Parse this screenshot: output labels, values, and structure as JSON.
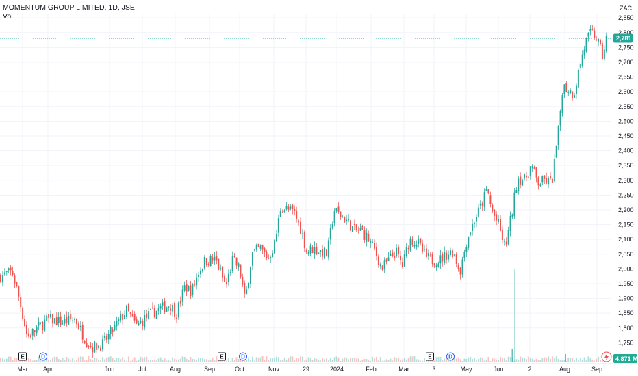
{
  "legend": {
    "title": "MOMENTUM GROUP LIMITED, 1D, JSE",
    "volume_label": "Vol"
  },
  "currency": "ZAC",
  "colors": {
    "up": "#26a69a",
    "down": "#ef5350",
    "grid": "#f0f3fa",
    "axis_text": "#131722",
    "price_line": "#26a69a",
    "volume_badge": "#22ab94"
  },
  "chart_data": {
    "type": "candlestick",
    "symbol": "MOMENTUM GROUP LIMITED",
    "interval": "1D",
    "exchange": "JSE",
    "ylim": [
      1705,
      2845
    ],
    "y_ticks": [
      "1,750",
      "1,800",
      "1,850",
      "1,900",
      "1,950",
      "2,000",
      "2,050",
      "2,100",
      "2,150",
      "2,200",
      "2,250",
      "2,300",
      "2,350",
      "2,400",
      "2,450",
      "2,500",
      "2,550",
      "2,600",
      "2,650",
      "2,700",
      "2,750",
      "2,800",
      "2,850"
    ],
    "x_labels": [
      "Mar",
      "Apr",
      "Jun",
      "Jul",
      "Aug",
      "Sep",
      "Oct",
      "Nov",
      "29",
      "2024",
      "Feb",
      "Mar",
      "3",
      "May",
      "Jun",
      "2",
      "Aug",
      "Sep"
    ],
    "grid": true,
    "last_price": "2,781",
    "last_volume": "4.871 M",
    "events": [
      {
        "label": "E",
        "kind": "earnings"
      },
      {
        "label": "D",
        "kind": "dividend"
      },
      {
        "label": "E",
        "kind": "earnings"
      },
      {
        "label": "D",
        "kind": "dividend"
      },
      {
        "label": "E",
        "kind": "earnings"
      },
      {
        "label": "D",
        "kind": "dividend"
      }
    ],
    "anchors": [
      [
        0,
        1975
      ],
      [
        18,
        1990
      ],
      [
        28,
        1900
      ],
      [
        40,
        1770
      ],
      [
        55,
        1800
      ],
      [
        70,
        1830
      ],
      [
        90,
        1820
      ],
      [
        110,
        1830
      ],
      [
        125,
        1760
      ],
      [
        135,
        1735
      ],
      [
        150,
        1745
      ],
      [
        170,
        1810
      ],
      [
        185,
        1860
      ],
      [
        200,
        1805
      ],
      [
        215,
        1840
      ],
      [
        230,
        1860
      ],
      [
        248,
        1880
      ],
      [
        258,
        1850
      ],
      [
        270,
        1940
      ],
      [
        280,
        1925
      ],
      [
        290,
        1990
      ],
      [
        300,
        2030
      ],
      [
        315,
        2030
      ],
      [
        322,
        1990
      ],
      [
        330,
        1940
      ],
      [
        340,
        2030
      ],
      [
        350,
        2000
      ],
      [
        358,
        1890
      ],
      [
        368,
        2050
      ],
      [
        380,
        2070
      ],
      [
        392,
        2035
      ],
      [
        402,
        2090
      ],
      [
        410,
        2210
      ],
      [
        420,
        2200
      ],
      [
        430,
        2190
      ],
      [
        440,
        2130
      ],
      [
        448,
        2060
      ],
      [
        458,
        2070
      ],
      [
        468,
        2060
      ],
      [
        478,
        2050
      ],
      [
        488,
        2200
      ],
      [
        498,
        2180
      ],
      [
        508,
        2160
      ],
      [
        518,
        2130
      ],
      [
        528,
        2130
      ],
      [
        538,
        2100
      ],
      [
        548,
        2060
      ],
      [
        558,
        2000
      ],
      [
        568,
        2030
      ],
      [
        578,
        2060
      ],
      [
        588,
        2010
      ],
      [
        598,
        2100
      ],
      [
        610,
        2090
      ],
      [
        622,
        2040
      ],
      [
        632,
        2030
      ],
      [
        642,
        2030
      ],
      [
        652,
        2050
      ],
      [
        662,
        2060
      ],
      [
        672,
        1990
      ],
      [
        682,
        2100
      ],
      [
        692,
        2160
      ],
      [
        702,
        2210
      ],
      [
        712,
        2270
      ],
      [
        718,
        2200
      ],
      [
        728,
        2150
      ],
      [
        738,
        2070
      ],
      [
        748,
        2190
      ],
      [
        756,
        2310
      ],
      [
        766,
        2300
      ],
      [
        776,
        2350
      ],
      [
        786,
        2290
      ],
      [
        796,
        2300
      ],
      [
        806,
        2290
      ],
      [
        816,
        2470
      ],
      [
        822,
        2620
      ],
      [
        830,
        2610
      ],
      [
        838,
        2590
      ],
      [
        848,
        2700
      ],
      [
        856,
        2770
      ],
      [
        864,
        2800
      ],
      [
        872,
        2780
      ],
      [
        880,
        2720
      ],
      [
        886,
        2781
      ]
    ],
    "volume_spikes": [
      [
        752,
        0.34
      ],
      [
        748,
        0.05
      ],
      [
        826,
        0.03
      ]
    ]
  }
}
